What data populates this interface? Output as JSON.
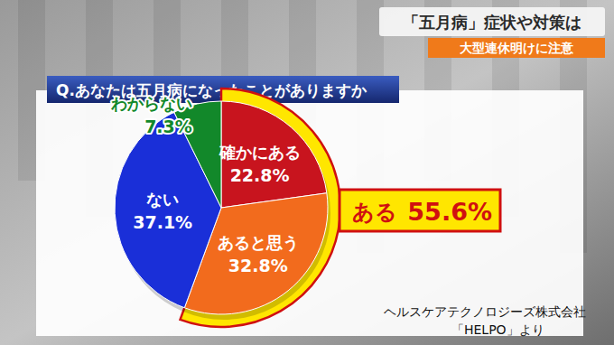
{
  "header": {
    "title": "「五月病」症状や対策は",
    "subtitle": "大型連休明けに注意"
  },
  "chart_data": {
    "type": "pie",
    "title": "Q.あなたは五月病になったことがありますか",
    "categories": [
      "確かにある",
      "あると思う",
      "ない",
      "わからない"
    ],
    "values": [
      22.8,
      32.8,
      37.1,
      7.3
    ],
    "value_labels": [
      "22.8%",
      "32.8%",
      "37.1%",
      "7.3%"
    ],
    "colors": [
      "#c8141e",
      "#f26b1d",
      "#1a2fd8",
      "#12882a"
    ],
    "data_labels": true,
    "highlight": {
      "label": "ある",
      "value": 55.6,
      "value_label": "55.6%"
    },
    "source": [
      "ヘルスケアテクノロジーズ株式会社",
      "「HELPO」より"
    ]
  }
}
